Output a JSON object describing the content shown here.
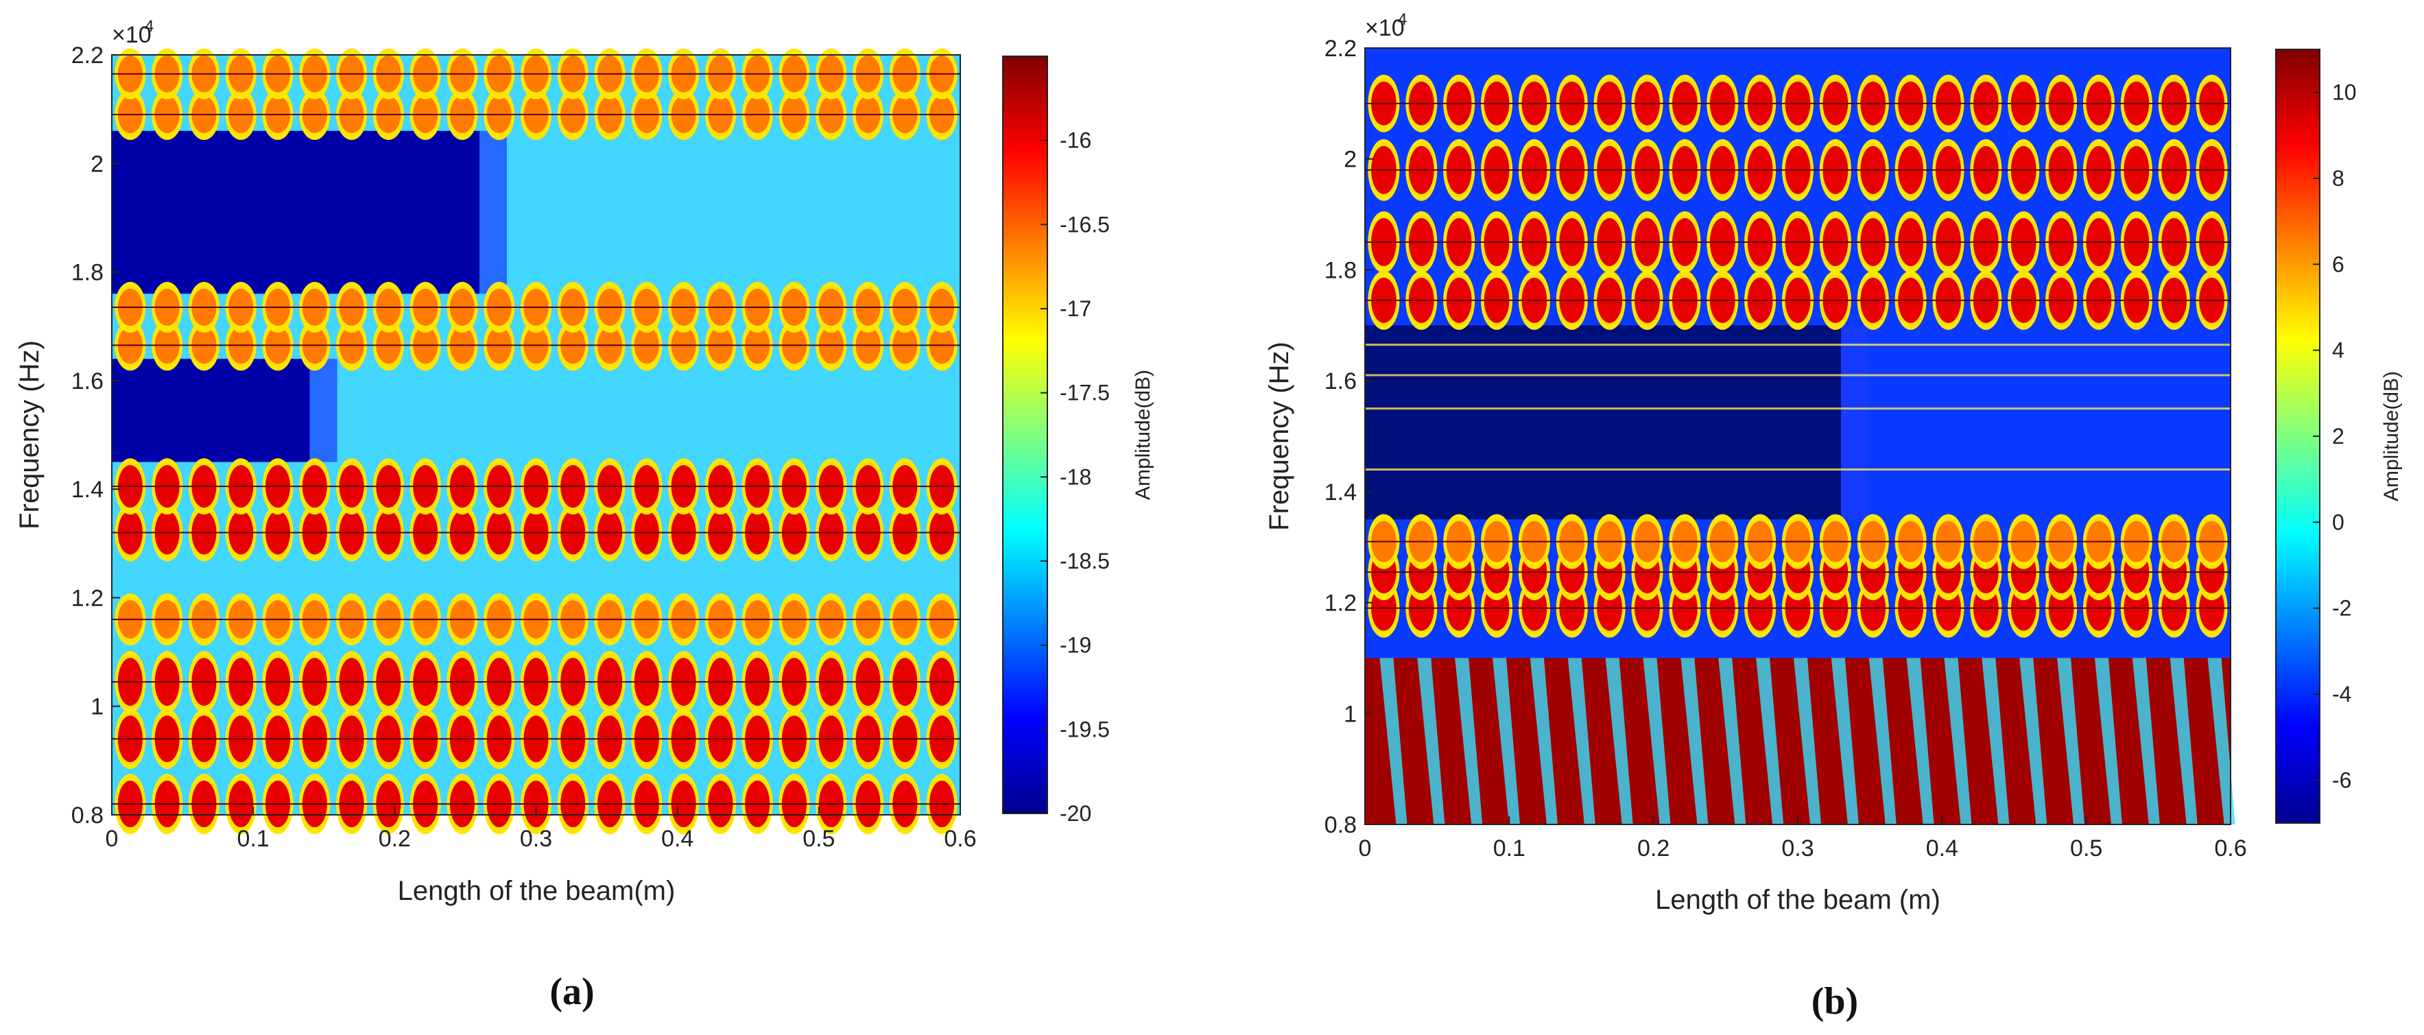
{
  "chart_data": [
    {
      "panel": "(a)",
      "type": "heatmap",
      "title": "",
      "xlabel": "Length of the beam(m)",
      "ylabel": "Frequency (Hz)",
      "y_exponent_base": "×10",
      "y_exponent_power": "4",
      "x": [
        0,
        0.1,
        0.2,
        0.3,
        0.4,
        0.5,
        0.6
      ],
      "x_tick_labels": [
        "0",
        "0.1",
        "0.2",
        "0.3",
        "0.4",
        "0.5",
        "0.6"
      ],
      "xlim": [
        0,
        0.6
      ],
      "y_ticks": [
        0.8,
        1,
        1.2,
        1.4,
        1.6,
        1.8,
        2,
        2.2
      ],
      "y_tick_labels": [
        "0.8",
        "1",
        "1.2",
        "1.4",
        "1.6",
        "1.8",
        "2",
        "2.2"
      ],
      "ylim": [
        0.8,
        2.2
      ],
      "colorbar_label": "Amplitude(dB)",
      "colorbar_range": [
        -20,
        -15.5
      ],
      "colorbar_ticks": [
        -16,
        -16.5,
        -17,
        -17.5,
        -18,
        -18.5,
        -19,
        -19.5,
        -20
      ],
      "colorbar_tick_labels": [
        "-16",
        "-16.5",
        "-17",
        "-17.5",
        "-18",
        "-18.5",
        "-19",
        "-19.5",
        "-20"
      ],
      "resonance_bands": [
        {
          "freq": 0.82,
          "strength": 0.9
        },
        {
          "freq": 0.94,
          "strength": 0.9
        },
        {
          "freq": 1.045,
          "strength": 0.95
        },
        {
          "freq": 1.16,
          "strength": 0.6
        },
        {
          "freq": 1.32,
          "strength": 0.8
        },
        {
          "freq": 1.405,
          "strength": 0.75
        },
        {
          "freq": 1.665,
          "strength": 0.55
        },
        {
          "freq": 1.735,
          "strength": 0.55
        },
        {
          "freq": 2.09,
          "strength": 0.55
        },
        {
          "freq": 2.165,
          "strength": 0.55
        }
      ],
      "dark_regions": [
        {
          "f_from": 1.76,
          "f_to": 2.06,
          "x_to": 0.26
        },
        {
          "f_from": 1.45,
          "f_to": 1.64,
          "x_to": 0.14
        }
      ],
      "mode_columns": 23
    },
    {
      "panel": "(b)",
      "type": "heatmap",
      "title": "",
      "xlabel": "Length of the beam (m)",
      "ylabel": "Frequency (Hz)",
      "y_exponent_base": "×10",
      "y_exponent_power": "4",
      "x": [
        0,
        0.1,
        0.2,
        0.3,
        0.4,
        0.5,
        0.6
      ],
      "x_tick_labels": [
        "0",
        "0.1",
        "0.2",
        "0.3",
        "0.4",
        "0.5",
        "0.6"
      ],
      "xlim": [
        0,
        0.6
      ],
      "y_ticks": [
        0.8,
        1,
        1.2,
        1.4,
        1.6,
        1.8,
        2,
        2.2
      ],
      "y_tick_labels": [
        "0.8",
        "1",
        "1.2",
        "1.4",
        "1.6",
        "1.8",
        "2",
        "2.2"
      ],
      "ylim": [
        0.8,
        2.2
      ],
      "colorbar_label": "Amplitude(dB)",
      "colorbar_range": [
        -7,
        11
      ],
      "colorbar_ticks": [
        10,
        8,
        6,
        4,
        2,
        0,
        -2,
        -4,
        -6
      ],
      "colorbar_tick_labels": [
        "10",
        "8",
        "6",
        "4",
        "2",
        "0",
        "-2",
        "-4",
        "-6"
      ],
      "resonance_bands": [
        {
          "freq": 1.19,
          "strength": 0.85
        },
        {
          "freq": 1.255,
          "strength": 0.75
        },
        {
          "freq": 1.31,
          "strength": 0.7
        },
        {
          "freq": 1.745,
          "strength": 0.85
        },
        {
          "freq": 1.85,
          "strength": 0.95
        },
        {
          "freq": 1.98,
          "strength": 0.95
        },
        {
          "freq": 2.1,
          "strength": 0.8
        }
      ],
      "saturated_region": {
        "f_from": 0.8,
        "f_to": 1.1
      },
      "dark_regions": [
        {
          "f_from": 1.35,
          "f_to": 1.7,
          "x_to": 0.33
        }
      ],
      "thin_lines": [
        1.44,
        1.55,
        1.61,
        1.665
      ],
      "mode_columns": 23
    }
  ],
  "captions": {
    "a": "(a)",
    "b": "(b)"
  }
}
